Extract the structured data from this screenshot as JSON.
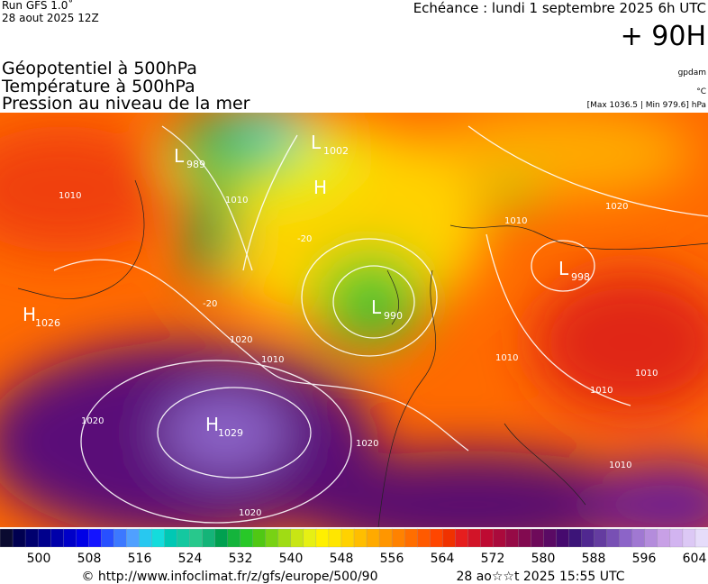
{
  "header": {
    "run": "Run GFS 1.0˚",
    "date": "28 aout 2025 12Z",
    "valid": "Echéance : lundi 1 septembre 2025 6h UTC",
    "lead": "+ 90H"
  },
  "fields": [
    "Géopotentiel à 500hPa",
    "Température à 500hPa",
    "Pression au niveau de la mer"
  ],
  "units": [
    "gpdam",
    "°C",
    "[Max 1036.5 | Min 979.6] hPa"
  ],
  "centers": [
    {
      "type": "L",
      "value": "989"
    },
    {
      "type": "L",
      "value": "1002"
    },
    {
      "type": "H",
      "value": ""
    },
    {
      "type": "L",
      "value": "990"
    },
    {
      "type": "L",
      "value": "998"
    },
    {
      "type": "H",
      "value": "1026"
    },
    {
      "type": "H",
      "value": "1029"
    }
  ],
  "contour_labels": [
    "1010",
    "1010",
    "1010",
    "1020",
    "1010",
    "1020",
    "1020",
    "1020",
    "1020",
    "1010",
    "1010",
    "1010",
    "1010",
    "-20",
    "-20"
  ],
  "colorbar": {
    "colors": [
      "#0a0a30",
      "#000050",
      "#00006e",
      "#00008c",
      "#0000aa",
      "#0000c8",
      "#0000e6",
      "#1414ff",
      "#2850ff",
      "#3c78ff",
      "#50a0ff",
      "#28c8f0",
      "#14dcdc",
      "#00c8b4",
      "#14c8a0",
      "#28c88c",
      "#14b478",
      "#00a050",
      "#14b43c",
      "#28c828",
      "#50c814",
      "#78d214",
      "#a0dc14",
      "#c8e614",
      "#e6f014",
      "#fff000",
      "#ffe600",
      "#ffd200",
      "#ffbe00",
      "#ffaa00",
      "#ff9600",
      "#ff8200",
      "#ff6e00",
      "#ff5a00",
      "#ff4600",
      "#f03200",
      "#e61e1e",
      "#d21428",
      "#be0a32",
      "#aa0a3c",
      "#960a46",
      "#820a50",
      "#6e0a5a",
      "#5a0a64",
      "#460a6e",
      "#3c1478",
      "#502890",
      "#643ca0",
      "#7850b4",
      "#8c64c8",
      "#a078d2",
      "#b48cdc",
      "#c8a0e6",
      "#d2b4f0",
      "#dcc8f5",
      "#e6dcfa"
    ],
    "ticks": [
      "500",
      "508",
      "516",
      "524",
      "532",
      "540",
      "548",
      "556",
      "564",
      "572",
      "580",
      "588",
      "596",
      "604"
    ]
  },
  "footer": {
    "source": "© http://www.infoclimat.fr/z/gfs/europe/500/90",
    "generated": "28 ao☆☆t 2025 15:55 UTC"
  }
}
